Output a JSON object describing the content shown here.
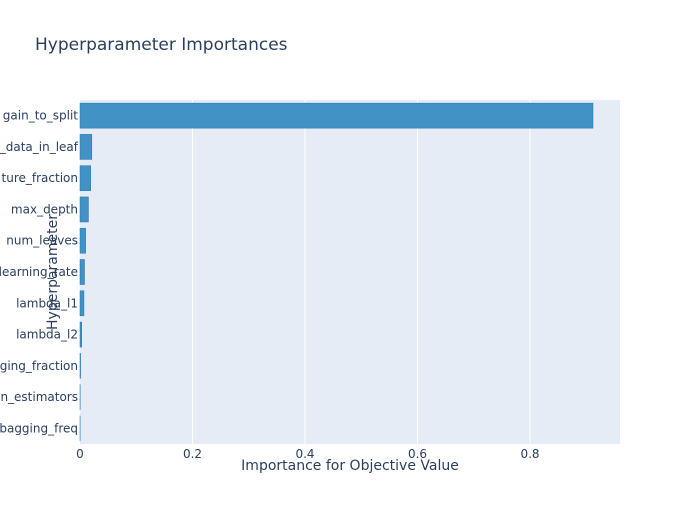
{
  "chart_data": {
    "type": "bar",
    "orientation": "horizontal",
    "title": "Hyperparameter Importances",
    "xlabel": "Importance for Objective Value",
    "ylabel": "Hyperparameter",
    "categories": [
      "min_gain_to_split",
      "min_data_in_leaf",
      "feature_fraction",
      "max_depth",
      "num_leaves",
      "learning_rate",
      "lambda_l1",
      "lambda_l2",
      "bagging_fraction",
      "n_estimators",
      "bagging_freq"
    ],
    "category_labels_visible": [
      "gain_to_split",
      "_data_in_leaf",
      "ture_fraction",
      "max_depth",
      "num_leaves",
      "learning_rate",
      "lambda_l1",
      "lambda_l2",
      "ging_fraction",
      "n_estimators",
      "bagging_freq"
    ],
    "values": [
      0.912,
      0.021,
      0.019,
      0.015,
      0.01,
      0.008,
      0.007,
      0.003,
      0.001,
      0.0003,
      0.0002
    ],
    "xlim": [
      0,
      0.96
    ],
    "xticks": [
      0,
      0.2,
      0.4,
      0.6,
      0.8
    ],
    "xtick_labels": [
      "0",
      "0.2",
      "0.4",
      "0.6",
      "0.8"
    ],
    "grid": true,
    "legend": "none",
    "colors": {
      "bar": "#4292c6",
      "bar_edge": "#2171b5",
      "plot_bg": "#e5ecf6",
      "grid": "#ffffff",
      "text": "#2a3f5f"
    }
  }
}
